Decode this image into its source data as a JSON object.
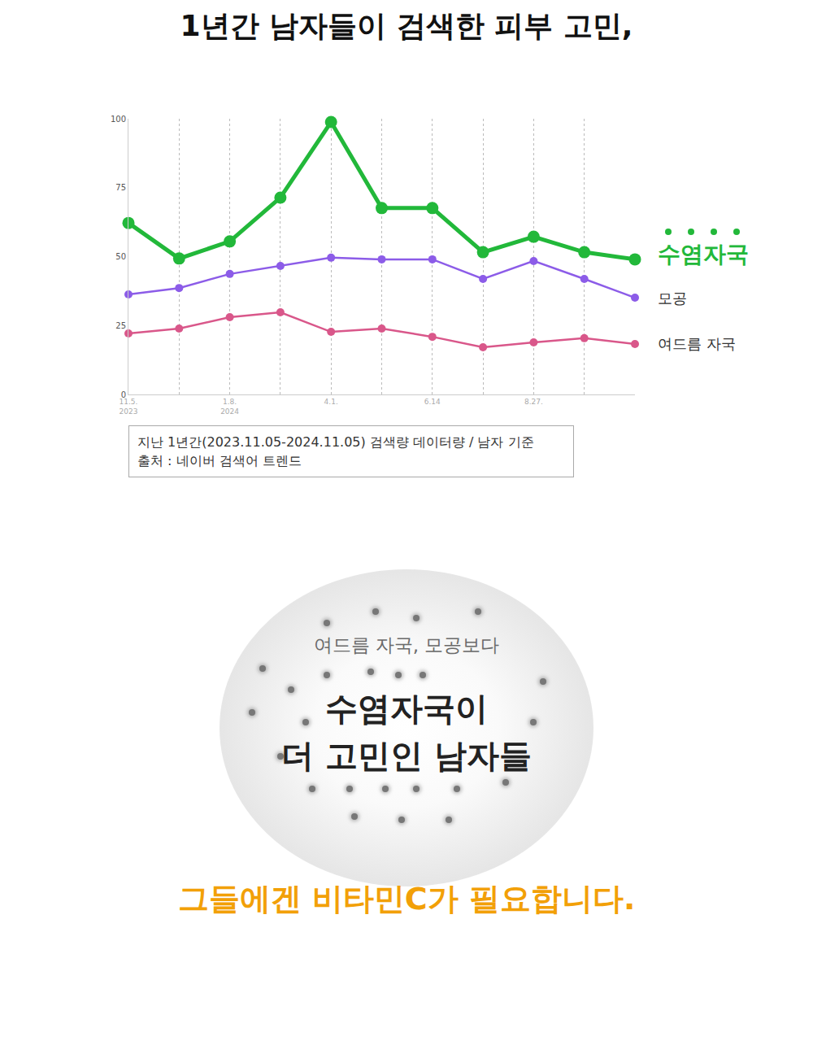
{
  "heading": "1년간 남자들이 검색한 피부 고민,",
  "chart_data": {
    "type": "line",
    "categories": [
      "11.5.\n2023",
      null,
      "1.8.\n2024",
      null,
      "4.1.",
      null,
      "6.14",
      null,
      "8.27.",
      null,
      null
    ],
    "series": [
      {
        "name": "수염자국",
        "color": "#22b83a",
        "marker": "circle",
        "values": [
          62.2,
          49.3,
          55.5,
          71.4,
          98.8,
          67.6,
          67.6,
          51.6,
          57.2,
          51.6,
          49.0
        ]
      },
      {
        "name": "모공",
        "color": "#8c5ce8",
        "marker": "circle",
        "values": [
          36.3,
          38.6,
          43.7,
          46.6,
          49.6,
          49.0,
          49.0,
          41.9,
          48.4,
          41.9,
          35.1
        ]
      },
      {
        "name": "여드름 자국",
        "color": "#d9578a",
        "marker": "circle",
        "values": [
          22.1,
          23.9,
          28.0,
          29.8,
          22.7,
          23.9,
          20.9,
          17.1,
          18.9,
          20.4,
          18.3
        ]
      }
    ],
    "ylim": [
      0,
      100
    ],
    "yticks": [
      0,
      25,
      50,
      75,
      100
    ],
    "grid": true
  },
  "source_note": [
    "지난 1년간(2023.11.05-2024.11.05) 검색량 데이터량 / 남자 기준",
    "출처 : 네이버 검색어 트렌드"
  ],
  "callout": {
    "lead": "여드름 자국, 모공보다",
    "headline": [
      "수염자국이",
      "더 고민인 남자들"
    ]
  },
  "conclusion": "그들에겐 비타민C가 필요합니다."
}
